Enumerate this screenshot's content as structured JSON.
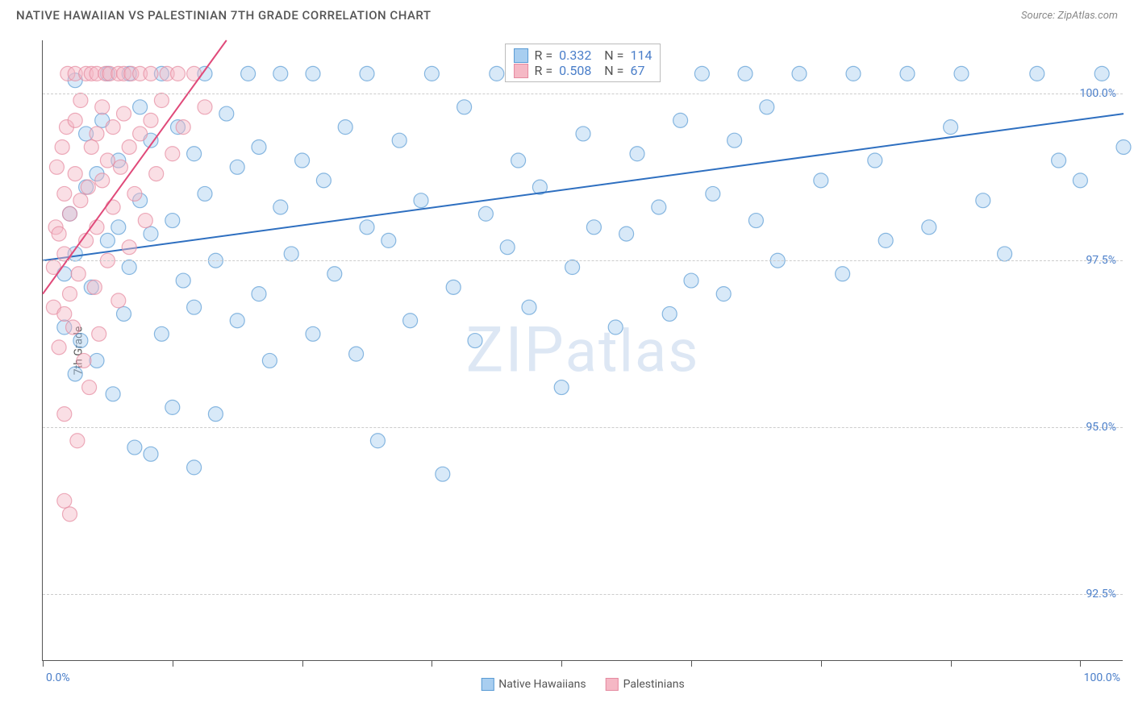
{
  "header": {
    "title": "NATIVE HAWAIIAN VS PALESTINIAN 7TH GRADE CORRELATION CHART",
    "source": "Source: ZipAtlas.com"
  },
  "ylabel": "7th Grade",
  "watermark": "ZIPatlas",
  "chart": {
    "type": "scatter",
    "xlim": [
      0,
      100
    ],
    "ylim": [
      91.5,
      100.8
    ],
    "yticks": [
      92.5,
      95.0,
      97.5,
      100.0
    ],
    "ytick_labels": [
      "92.5%",
      "95.0%",
      "97.5%",
      "100.0%"
    ],
    "xticks": [
      0,
      12,
      24,
      36,
      48,
      60,
      72,
      84,
      96
    ],
    "xaxis_labels": {
      "start": "0.0%",
      "end": "100.0%"
    },
    "grid_color": "#cccccc",
    "axis_color": "#555555",
    "background_color": "#ffffff",
    "marker_radius": 9,
    "marker_opacity": 0.45,
    "marker_stroke_width": 1.2,
    "trend_line_width": 2,
    "series": [
      {
        "name": "Native Hawaiians",
        "color_fill": "#a8cef0",
        "color_stroke": "#5a9bd4",
        "trend_color": "#2e6fc0",
        "r": "0.332",
        "n": "114",
        "trend_start": [
          0,
          97.5
        ],
        "trend_end": [
          100,
          99.7
        ],
        "points": [
          [
            2,
            97.3
          ],
          [
            2,
            96.5
          ],
          [
            2.5,
            98.2
          ],
          [
            3,
            95.8
          ],
          [
            3,
            97.6
          ],
          [
            3,
            100.2
          ],
          [
            3.5,
            96.3
          ],
          [
            4,
            98.6
          ],
          [
            4,
            99.4
          ],
          [
            4.5,
            97.1
          ],
          [
            5,
            96.0
          ],
          [
            5,
            98.8
          ],
          [
            5.5,
            99.6
          ],
          [
            6,
            97.8
          ],
          [
            6,
            100.3
          ],
          [
            6.5,
            95.5
          ],
          [
            7,
            98.0
          ],
          [
            7,
            99.0
          ],
          [
            7.5,
            96.7
          ],
          [
            8,
            97.4
          ],
          [
            8,
            100.3
          ],
          [
            8.5,
            94.7
          ],
          [
            9,
            98.4
          ],
          [
            9,
            99.8
          ],
          [
            10,
            94.6
          ],
          [
            10,
            97.9
          ],
          [
            10,
            99.3
          ],
          [
            11,
            96.4
          ],
          [
            11,
            100.3
          ],
          [
            12,
            95.3
          ],
          [
            12,
            98.1
          ],
          [
            12.5,
            99.5
          ],
          [
            13,
            97.2
          ],
          [
            14,
            94.4
          ],
          [
            14,
            96.8
          ],
          [
            14,
            99.1
          ],
          [
            15,
            98.5
          ],
          [
            15,
            100.3
          ],
          [
            16,
            95.2
          ],
          [
            16,
            97.5
          ],
          [
            17,
            99.7
          ],
          [
            18,
            96.6
          ],
          [
            18,
            98.9
          ],
          [
            19,
            100.3
          ],
          [
            20,
            97.0
          ],
          [
            20,
            99.2
          ],
          [
            21,
            96.0
          ],
          [
            22,
            98.3
          ],
          [
            22,
            100.3
          ],
          [
            23,
            97.6
          ],
          [
            24,
            99.0
          ],
          [
            25,
            96.4
          ],
          [
            25,
            100.3
          ],
          [
            26,
            98.7
          ],
          [
            27,
            97.3
          ],
          [
            28,
            99.5
          ],
          [
            29,
            96.1
          ],
          [
            30,
            98.0
          ],
          [
            30,
            100.3
          ],
          [
            31,
            94.8
          ],
          [
            32,
            97.8
          ],
          [
            33,
            99.3
          ],
          [
            34,
            96.6
          ],
          [
            35,
            98.4
          ],
          [
            36,
            100.3
          ],
          [
            37,
            94.3
          ],
          [
            38,
            97.1
          ],
          [
            39,
            99.8
          ],
          [
            40,
            96.3
          ],
          [
            41,
            98.2
          ],
          [
            42,
            100.3
          ],
          [
            43,
            97.7
          ],
          [
            44,
            99.0
          ],
          [
            45,
            96.8
          ],
          [
            46,
            98.6
          ],
          [
            47,
            100.3
          ],
          [
            48,
            95.6
          ],
          [
            49,
            97.4
          ],
          [
            50,
            99.4
          ],
          [
            51,
            98.0
          ],
          [
            52,
            100.3
          ],
          [
            53,
            96.5
          ],
          [
            54,
            97.9
          ],
          [
            55,
            99.1
          ],
          [
            56,
            100.3
          ],
          [
            57,
            98.3
          ],
          [
            58,
            96.7
          ],
          [
            59,
            99.6
          ],
          [
            60,
            97.2
          ],
          [
            61,
            100.3
          ],
          [
            62,
            98.5
          ],
          [
            63,
            97.0
          ],
          [
            64,
            99.3
          ],
          [
            65,
            100.3
          ],
          [
            66,
            98.1
          ],
          [
            67,
            99.8
          ],
          [
            68,
            97.5
          ],
          [
            70,
            100.3
          ],
          [
            72,
            98.7
          ],
          [
            74,
            97.3
          ],
          [
            75,
            100.3
          ],
          [
            77,
            99.0
          ],
          [
            78,
            97.8
          ],
          [
            80,
            100.3
          ],
          [
            82,
            98.0
          ],
          [
            84,
            99.5
          ],
          [
            85,
            100.3
          ],
          [
            87,
            98.4
          ],
          [
            89,
            97.6
          ],
          [
            92,
            100.3
          ],
          [
            94,
            99.0
          ],
          [
            96,
            98.7
          ],
          [
            98,
            100.3
          ],
          [
            100,
            99.2
          ]
        ]
      },
      {
        "name": "Palestinians",
        "color_fill": "#f5b8c5",
        "color_stroke": "#e58aa0",
        "trend_color": "#e04a7a",
        "r": "0.508",
        "n": "67",
        "trend_start": [
          0,
          97.0
        ],
        "trend_end": [
          17,
          100.8
        ],
        "points": [
          [
            1,
            96.8
          ],
          [
            1,
            97.4
          ],
          [
            1.2,
            98.0
          ],
          [
            1.3,
            98.9
          ],
          [
            1.5,
            96.2
          ],
          [
            1.5,
            97.9
          ],
          [
            1.8,
            99.2
          ],
          [
            2,
            93.9
          ],
          [
            2,
            95.2
          ],
          [
            2,
            96.7
          ],
          [
            2,
            97.6
          ],
          [
            2,
            98.5
          ],
          [
            2.2,
            99.5
          ],
          [
            2.3,
            100.3
          ],
          [
            2.5,
            93.7
          ],
          [
            2.5,
            97.0
          ],
          [
            2.5,
            98.2
          ],
          [
            2.8,
            96.5
          ],
          [
            3,
            98.8
          ],
          [
            3,
            99.6
          ],
          [
            3,
            100.3
          ],
          [
            3.2,
            94.8
          ],
          [
            3.3,
            97.3
          ],
          [
            3.5,
            98.4
          ],
          [
            3.5,
            99.9
          ],
          [
            3.8,
            96.0
          ],
          [
            4,
            97.8
          ],
          [
            4,
            100.3
          ],
          [
            4.2,
            98.6
          ],
          [
            4.3,
            95.6
          ],
          [
            4.5,
            99.2
          ],
          [
            4.5,
            100.3
          ],
          [
            4.8,
            97.1
          ],
          [
            5,
            98.0
          ],
          [
            5,
            99.4
          ],
          [
            5,
            100.3
          ],
          [
            5.2,
            96.4
          ],
          [
            5.5,
            98.7
          ],
          [
            5.5,
            99.8
          ],
          [
            5.8,
            100.3
          ],
          [
            6,
            97.5
          ],
          [
            6,
            99.0
          ],
          [
            6.2,
            100.3
          ],
          [
            6.5,
            98.3
          ],
          [
            6.5,
            99.5
          ],
          [
            7,
            96.9
          ],
          [
            7,
            100.3
          ],
          [
            7.2,
            98.9
          ],
          [
            7.5,
            99.7
          ],
          [
            7.5,
            100.3
          ],
          [
            8,
            97.7
          ],
          [
            8,
            99.2
          ],
          [
            8.2,
            100.3
          ],
          [
            8.5,
            98.5
          ],
          [
            9,
            99.4
          ],
          [
            9,
            100.3
          ],
          [
            9.5,
            98.1
          ],
          [
            10,
            99.6
          ],
          [
            10,
            100.3
          ],
          [
            10.5,
            98.8
          ],
          [
            11,
            99.9
          ],
          [
            11.5,
            100.3
          ],
          [
            12,
            99.1
          ],
          [
            12.5,
            100.3
          ],
          [
            13,
            99.5
          ],
          [
            14,
            100.3
          ],
          [
            15,
            99.8
          ]
        ]
      }
    ],
    "legend_bottom": [
      {
        "label": "Native Hawaiians",
        "fill": "#a8cef0",
        "stroke": "#5a9bd4"
      },
      {
        "label": "Palestinians",
        "fill": "#f5b8c5",
        "stroke": "#e58aa0"
      }
    ]
  }
}
